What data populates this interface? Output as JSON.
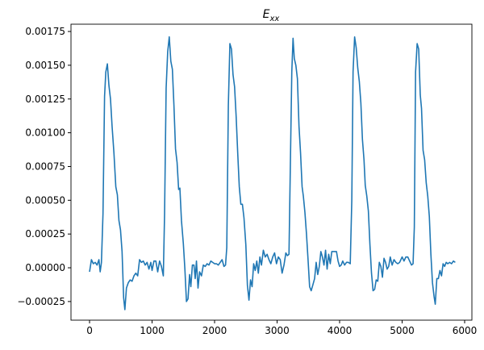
{
  "chart_data": {
    "type": "line",
    "title": {
      "text": "E",
      "subscript": "xx"
    },
    "x": [
      0,
      30,
      60,
      90,
      120,
      150,
      170,
      190,
      215,
      240,
      260,
      285,
      310,
      335,
      360,
      390,
      420,
      445,
      470,
      495,
      520,
      545,
      565,
      590,
      620,
      650,
      680,
      710,
      740,
      770,
      800,
      830,
      860,
      890,
      920,
      950,
      980,
      1000,
      1030,
      1060,
      1090,
      1120,
      1150,
      1180,
      1200,
      1225,
      1250,
      1275,
      1300,
      1325,
      1350,
      1375,
      1400,
      1425,
      1445,
      1470,
      1500,
      1525,
      1550,
      1575,
      1600,
      1620,
      1645,
      1670,
      1690,
      1710,
      1735,
      1760,
      1790,
      1820,
      1850,
      1880,
      1910,
      1940,
      1970,
      2000,
      2030,
      2060,
      2090,
      2120,
      2150,
      2175,
      2195,
      2220,
      2245,
      2270,
      2295,
      2320,
      2345,
      2370,
      2395,
      2420,
      2445,
      2470,
      2500,
      2525,
      2550,
      2575,
      2600,
      2625,
      2650,
      2675,
      2700,
      2725,
      2750,
      2780,
      2810,
      2840,
      2870,
      2900,
      2930,
      2960,
      2990,
      3020,
      3050,
      3080,
      3110,
      3140,
      3165,
      3190,
      3210,
      3235,
      3255,
      3275,
      3300,
      3325,
      3350,
      3375,
      3400,
      3420,
      3445,
      3470,
      3495,
      3520,
      3545,
      3570,
      3600,
      3625,
      3650,
      3675,
      3700,
      3725,
      3750,
      3775,
      3800,
      3825,
      3850,
      3875,
      3900,
      3925,
      3950,
      3975,
      4000,
      4025,
      4050,
      4080,
      4110,
      4140,
      4170,
      4195,
      4215,
      4240,
      4265,
      4290,
      4315,
      4340,
      4365,
      4390,
      4410,
      4435,
      4460,
      4485,
      4510,
      4535,
      4560,
      4585,
      4610,
      4635,
      4660,
      4685,
      4710,
      4735,
      4760,
      4785,
      4810,
      4840,
      4870,
      4900,
      4930,
      4960,
      5000,
      5030,
      5060,
      5090,
      5120,
      5150,
      5175,
      5195,
      5215,
      5240,
      5265,
      5290,
      5310,
      5335,
      5360,
      5385,
      5410,
      5435,
      5460,
      5485,
      5510,
      5530,
      5555,
      5580,
      5605,
      5630,
      5655,
      5680,
      5705,
      5730,
      5760,
      5790,
      5820,
      5850
    ],
    "series": [
      {
        "color": "#1f77b4",
        "values": [
          -3e-05,
          6e-05,
          3e-05,
          4e-05,
          2e-05,
          6e-05,
          -3e-05,
          4e-05,
          0.0004,
          0.00127,
          0.00145,
          0.00151,
          0.00135,
          0.00125,
          0.00105,
          0.00085,
          0.0006,
          0.00054,
          0.00035,
          0.00028,
          0.00012,
          -0.00022,
          -0.00031,
          -0.00015,
          -0.00011,
          -9e-05,
          -0.0001,
          -6e-05,
          -4e-05,
          -6e-05,
          6e-05,
          4e-05,
          5e-05,
          2e-05,
          4e-05,
          -1e-05,
          4e-05,
          -2e-05,
          5e-05,
          5e-05,
          -3e-05,
          5e-05,
          1e-05,
          -6e-05,
          0.0004,
          0.00133,
          0.0016,
          0.00171,
          0.00153,
          0.00147,
          0.0012,
          0.00088,
          0.00078,
          0.00058,
          0.00059,
          0.00035,
          0.00018,
          -1e-05,
          -0.00025,
          -0.00023,
          -5e-05,
          -0.00014,
          2e-05,
          2e-05,
          -8e-05,
          5e-05,
          -0.00015,
          -3e-05,
          -6e-05,
          2e-05,
          1e-05,
          3e-05,
          2e-05,
          5e-05,
          4e-05,
          3e-05,
          3e-05,
          2e-05,
          4e-05,
          6e-05,
          1e-05,
          2e-05,
          0.00015,
          0.0012,
          0.00166,
          0.00162,
          0.00143,
          0.00134,
          0.00112,
          0.00085,
          0.0006,
          0.00047,
          0.00047,
          0.00037,
          0.00017,
          -0.00013,
          -0.00024,
          -9e-05,
          -0.00014,
          3e-05,
          -2e-05,
          5e-05,
          -4e-05,
          8e-05,
          2e-05,
          0.00013,
          8e-05,
          0.0001,
          6e-05,
          3e-05,
          8e-05,
          0.00011,
          3e-05,
          8e-05,
          6e-05,
          -4e-05,
          2e-05,
          0.00011,
          9e-05,
          0.0001,
          0.0007,
          0.00145,
          0.0017,
          0.00155,
          0.0015,
          0.0014,
          0.00105,
          0.00085,
          0.0006,
          0.00053,
          0.00041,
          0.00025,
          6e-05,
          -0.00014,
          -0.00017,
          -0.00013,
          -8e-05,
          4e-05,
          -5e-05,
          1e-05,
          0.00012,
          8e-05,
          2e-05,
          0.00013,
          -1e-05,
          0.0001,
          3e-05,
          0.00012,
          0.00012,
          0.00012,
          0.00012,
          5e-05,
          1e-05,
          2e-05,
          5e-05,
          2e-05,
          4e-05,
          4e-05,
          3e-05,
          0.0005,
          0.00145,
          0.00171,
          0.00163,
          0.00148,
          0.00138,
          0.00122,
          0.00095,
          0.0008,
          0.00061,
          0.00053,
          0.00042,
          0.00017,
          -4e-05,
          -0.00017,
          -0.00016,
          -9e-05,
          -0.0001,
          4e-05,
          1e-05,
          -7e-05,
          7e-05,
          4e-05,
          -1e-05,
          1e-05,
          8e-05,
          2e-05,
          6e-05,
          4e-05,
          3e-05,
          4e-05,
          8e-05,
          5e-05,
          8e-05,
          8e-05,
          5e-05,
          2e-05,
          3e-05,
          0.0003,
          0.00145,
          0.00166,
          0.00162,
          0.00128,
          0.00118,
          0.00087,
          0.0008,
          0.00063,
          0.00053,
          0.00038,
          0.0001,
          -0.00011,
          -0.00021,
          -0.00027,
          -8e-05,
          -8e-05,
          -2e-05,
          -6e-05,
          3e-05,
          1e-05,
          4e-05,
          3e-05,
          4e-05,
          3e-05,
          5e-05,
          4e-05
        ]
      }
    ],
    "xlim": [
      -297,
      6116
    ],
    "xticks": [
      0,
      1000,
      2000,
      3000,
      4000,
      5000,
      6000
    ],
    "ylim": [
      -0.000388,
      0.001804
    ],
    "yticks": [
      {
        "value": -0.00025,
        "label": "−0.00025"
      },
      {
        "value": 0,
        "label": "0.00000"
      },
      {
        "value": 0.00025,
        "label": "0.00025"
      },
      {
        "value": 0.0005,
        "label": "0.00050"
      },
      {
        "value": 0.00075,
        "label": "0.00075"
      },
      {
        "value": 0.001,
        "label": "0.00100"
      },
      {
        "value": 0.00125,
        "label": "0.00125"
      },
      {
        "value": 0.0015,
        "label": "0.00150"
      },
      {
        "value": 0.00175,
        "label": "0.00175"
      }
    ],
    "grid": false
  }
}
